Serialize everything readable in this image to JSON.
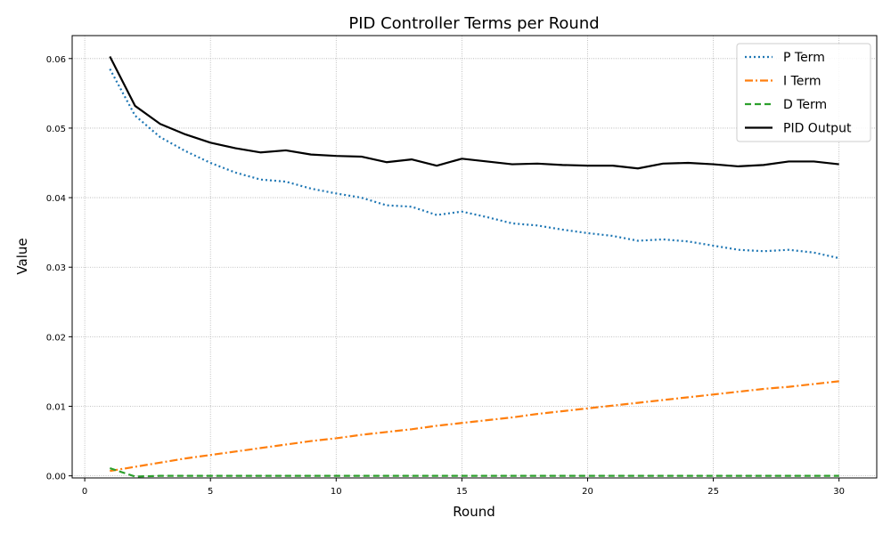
{
  "chart_data": {
    "type": "line",
    "title": "PID Controller Terms per Round",
    "xlabel": "Round",
    "ylabel": "Value",
    "xlim": [
      -0.5,
      31.5
    ],
    "ylim": [
      -0.0003,
      0.0633
    ],
    "xticks": [
      0,
      5,
      10,
      15,
      20,
      25,
      30
    ],
    "xtick_labels": [
      "0",
      "5",
      "10",
      "15",
      "20",
      "25",
      "30"
    ],
    "yticks": [
      0.0,
      0.01,
      0.02,
      0.03,
      0.04,
      0.05,
      0.06
    ],
    "ytick_labels": [
      "0.00",
      "0.01",
      "0.02",
      "0.03",
      "0.04",
      "0.05",
      "0.06"
    ],
    "grid": true,
    "legend_position": "top-right",
    "x": [
      1,
      2,
      3,
      4,
      5,
      6,
      7,
      8,
      9,
      10,
      11,
      12,
      13,
      14,
      15,
      16,
      17,
      18,
      19,
      20,
      21,
      22,
      23,
      24,
      25,
      26,
      27,
      28,
      29,
      30
    ],
    "series": [
      {
        "name": "P Term",
        "color": "#1f77b4",
        "style": "dotted",
        "values": [
          0.0585,
          0.0518,
          0.0487,
          0.0467,
          0.045,
          0.0436,
          0.0426,
          0.0423,
          0.0413,
          0.0406,
          0.04,
          0.0389,
          0.0387,
          0.0375,
          0.038,
          0.0372,
          0.0363,
          0.036,
          0.0354,
          0.0349,
          0.0345,
          0.0338,
          0.034,
          0.0337,
          0.0331,
          0.0325,
          0.0323,
          0.0325,
          0.0321,
          0.0313
        ]
      },
      {
        "name": "I Term",
        "color": "#ff7f0e",
        "style": "dashdot",
        "values": [
          0.0007,
          0.0013,
          0.0019,
          0.0025,
          0.003,
          0.0035,
          0.004,
          0.0045,
          0.005,
          0.0054,
          0.0059,
          0.0063,
          0.0067,
          0.0072,
          0.0076,
          0.008,
          0.0084,
          0.0089,
          0.0093,
          0.0097,
          0.0101,
          0.0105,
          0.0109,
          0.0113,
          0.0117,
          0.0121,
          0.0125,
          0.0128,
          0.0132,
          0.0136
        ]
      },
      {
        "name": "D Term",
        "color": "#2ca02c",
        "style": "dashed",
        "values": [
          0.0011,
          -0.0001,
          0.0,
          0.0,
          0.0,
          0.0,
          0.0,
          0.0,
          0.0,
          0.0,
          0.0,
          0.0,
          0.0,
          0.0,
          0.0,
          0.0,
          0.0,
          0.0,
          0.0,
          0.0,
          0.0,
          0.0,
          0.0,
          0.0,
          0.0,
          0.0,
          0.0,
          0.0,
          0.0,
          0.0
        ]
      },
      {
        "name": "PID Output",
        "color": "#000000",
        "style": "solid",
        "values": [
          0.0603,
          0.0532,
          0.0506,
          0.0491,
          0.0479,
          0.0471,
          0.0465,
          0.0468,
          0.0462,
          0.046,
          0.0459,
          0.0451,
          0.0455,
          0.0446,
          0.0456,
          0.0452,
          0.0448,
          0.0449,
          0.0447,
          0.0446,
          0.0446,
          0.0442,
          0.0449,
          0.045,
          0.0448,
          0.0445,
          0.0447,
          0.0452,
          0.0452,
          0.0448
        ]
      }
    ]
  }
}
